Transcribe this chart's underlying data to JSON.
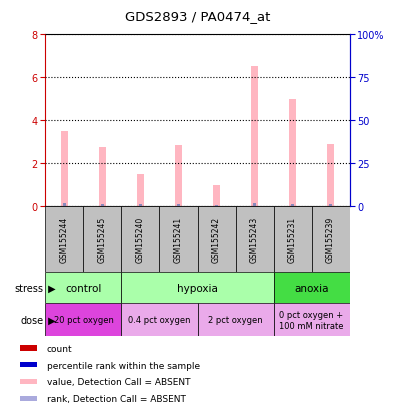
{
  "title": "GDS2893 / PA0474_at",
  "samples": [
    "GSM155244",
    "GSM155245",
    "GSM155240",
    "GSM155241",
    "GSM155242",
    "GSM155243",
    "GSM155231",
    "GSM155239"
  ],
  "pink_values": [
    3.5,
    2.75,
    1.5,
    2.85,
    1.0,
    6.5,
    5.0,
    2.9
  ],
  "blue_values": [
    0.12,
    0.1,
    0.07,
    0.1,
    0.04,
    0.14,
    0.11,
    0.08
  ],
  "ylim_left": [
    0,
    8
  ],
  "ylim_right": [
    0,
    100
  ],
  "yticks_left": [
    0,
    2,
    4,
    6,
    8
  ],
  "ytick_labels_right": [
    "0",
    "25",
    "50",
    "75",
    "100%"
  ],
  "pink_bar_color": "#FFB6C1",
  "blue_bar_color": "#8888BB",
  "left_axis_color": "#CC0000",
  "right_axis_color": "#0000CC",
  "bg_color": "#FFFFFF",
  "sample_box_color": "#C0C0C0",
  "stress_groups": [
    {
      "label": "control",
      "start": 0,
      "end": 2,
      "color": "#AAFFAA"
    },
    {
      "label": "hypoxia",
      "start": 2,
      "end": 6,
      "color": "#AAFFAA"
    },
    {
      "label": "anoxia",
      "start": 6,
      "end": 8,
      "color": "#44DD44"
    }
  ],
  "dose_groups": [
    {
      "label": "20 pct oxygen",
      "start": 0,
      "end": 2,
      "color": "#DD44DD"
    },
    {
      "label": "0.4 pct oxygen",
      "start": 2,
      "end": 4,
      "color": "#EAAAEA"
    },
    {
      "label": "2 pct oxygen",
      "start": 4,
      "end": 6,
      "color": "#EAAAEA"
    },
    {
      "label": "0 pct oxygen +\n100 mM nitrate",
      "start": 6,
      "end": 8,
      "color": "#EAAAEA"
    }
  ],
  "legend_colors": [
    "#CC0000",
    "#0000CC",
    "#FFB6C1",
    "#AAAADD"
  ],
  "legend_labels": [
    "count",
    "percentile rank within the sample",
    "value, Detection Call = ABSENT",
    "rank, Detection Call = ABSENT"
  ]
}
